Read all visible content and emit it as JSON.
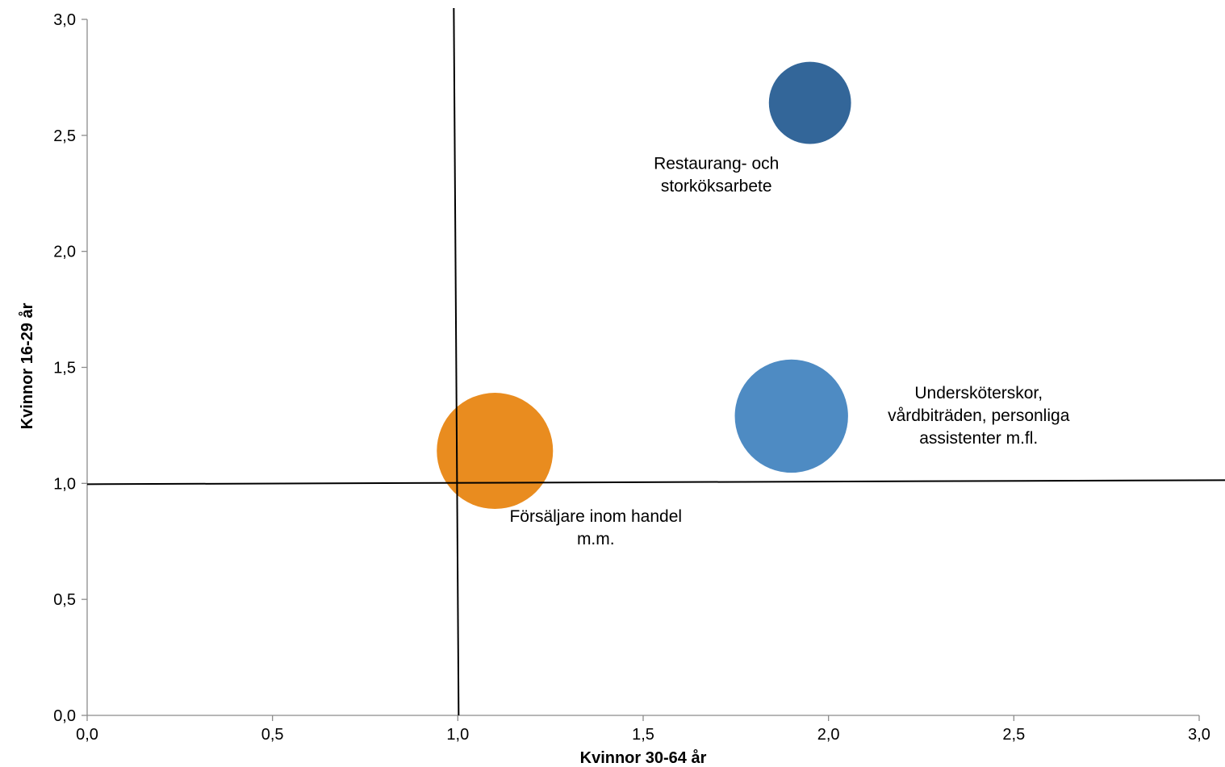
{
  "chart_data": {
    "type": "scatter",
    "subtype": "bubble",
    "title": "",
    "xlabel": "Kvinnor 30-64 år",
    "ylabel": "Kvinnor 16-29 år",
    "xlim": [
      0,
      3
    ],
    "ylim": [
      0,
      3
    ],
    "x_ticks": [
      "0,0",
      "0,5",
      "1,0",
      "1,5",
      "2,0",
      "2,5",
      "3,0"
    ],
    "y_ticks": [
      "0,0",
      "0,5",
      "1,0",
      "1,5",
      "2,0",
      "2,5",
      "3,0"
    ],
    "reference_lines": {
      "x": 1.0,
      "y": 1.0
    },
    "grid": false,
    "legend": "none",
    "points": [
      {
        "label": [
          "Restaurang- och",
          "storköksarbete"
        ],
        "x": 1.95,
        "y": 2.64,
        "size": 1.0,
        "color": "#336699"
      },
      {
        "label": [
          "Undersköterskor,",
          "vårdbiträden, personliga",
          "assistenter m.fl."
        ],
        "x": 1.9,
        "y": 1.29,
        "size": 1.9,
        "color": "#4e8bc3"
      },
      {
        "label": [
          "Försäljare inom handel",
          "m.m."
        ],
        "x": 1.1,
        "y": 1.14,
        "size": 2.0,
        "color": "#e98c1f"
      }
    ]
  }
}
